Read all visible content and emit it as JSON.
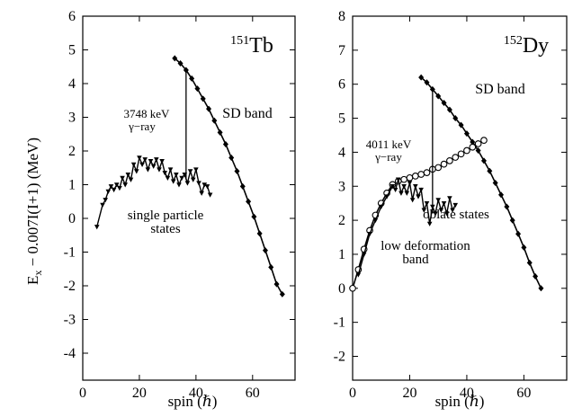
{
  "shared": {
    "ylabel": "E",
    "ylabel_sub": "x",
    "ylabel_rest": " − 0.007I(I+1) (MeV)"
  },
  "chart_data": [
    {
      "type": "line",
      "nucleus_mass": "151",
      "nucleus_symbol": "Tb",
      "xlabel": "spin (ℏ)",
      "xlim": [
        0,
        75
      ],
      "ylim": [
        -4.8,
        6
      ],
      "xticks": [
        0,
        20,
        40,
        60
      ],
      "yticks": [
        -4,
        -3,
        -2,
        -1,
        0,
        1,
        2,
        3,
        4,
        5,
        6
      ],
      "series": [
        {
          "name": "SD band",
          "marker": "diamond",
          "x": [
            32.5,
            34.5,
            36.5,
            38.5,
            40.5,
            42.5,
            44.5,
            46.5,
            48.5,
            50.5,
            52.5,
            54.5,
            56.5,
            58.5,
            60.5,
            62.5,
            64.5,
            66.5,
            68.5,
            70.5
          ],
          "y": [
            4.75,
            4.6,
            4.4,
            4.15,
            3.85,
            3.55,
            3.25,
            2.9,
            2.55,
            2.2,
            1.8,
            1.4,
            0.95,
            0.5,
            0.05,
            -0.45,
            -0.95,
            -1.45,
            -1.95,
            -2.25
          ]
        },
        {
          "name": "single particle states",
          "marker": "triangle",
          "x": [
            5,
            7,
            8,
            9,
            10,
            11,
            12,
            13,
            14,
            15,
            16,
            17,
            18,
            19,
            20,
            21,
            22,
            23,
            24,
            25,
            26,
            27,
            28,
            29,
            30,
            31,
            32,
            33,
            34,
            35,
            36,
            37,
            38,
            39,
            40,
            41,
            42,
            43,
            44,
            45
          ],
          "y": [
            -0.25,
            0.4,
            0.55,
            0.8,
            0.95,
            0.85,
            1.0,
            0.9,
            1.2,
            1.0,
            1.3,
            1.15,
            1.6,
            1.4,
            1.8,
            1.6,
            1.75,
            1.45,
            1.7,
            1.55,
            1.75,
            1.45,
            1.7,
            1.35,
            1.2,
            1.45,
            1.1,
            1.3,
            1.0,
            1.2,
            1.3,
            1.05,
            1.4,
            1.15,
            1.45,
            1.05,
            0.75,
            1.0,
            0.95,
            0.7
          ]
        }
      ],
      "transition": {
        "x": 36.5,
        "y_from": 4.35,
        "y_to": 1.15,
        "label_line1": "3748 keV",
        "label_line2": "γ−ray"
      },
      "annotations": {
        "sd": "SD band",
        "sp_line1": "single particle",
        "sp_line2": "states"
      }
    },
    {
      "type": "line",
      "nucleus_mass": "152",
      "nucleus_symbol": "Dy",
      "xlabel": "spin (ℏ)",
      "xlim": [
        0,
        75
      ],
      "ylim": [
        -2.7,
        8
      ],
      "xticks": [
        0,
        20,
        40,
        60
      ],
      "yticks": [
        -2,
        -1,
        0,
        1,
        2,
        3,
        4,
        5,
        6,
        7,
        8
      ],
      "series": [
        {
          "name": "SD band",
          "marker": "diamond",
          "x": [
            24,
            26,
            28,
            30,
            32,
            34,
            36,
            38,
            40,
            42,
            44,
            46,
            48,
            50,
            52,
            54,
            56,
            58,
            60,
            62,
            64,
            66
          ],
          "y": [
            6.2,
            6.05,
            5.85,
            5.65,
            5.45,
            5.25,
            5.0,
            4.8,
            4.55,
            4.3,
            4.05,
            3.75,
            3.45,
            3.1,
            2.75,
            2.4,
            2.0,
            1.6,
            1.2,
            0.75,
            0.35,
            0.0
          ]
        },
        {
          "name": "low deformation band",
          "marker": "circle",
          "x": [
            0,
            2,
            4,
            6,
            8,
            10,
            12,
            14,
            16,
            18,
            20,
            22,
            24,
            26,
            28,
            30,
            32,
            34,
            36,
            38,
            40,
            42,
            44,
            46
          ],
          "y": [
            0.0,
            0.55,
            1.15,
            1.7,
            2.15,
            2.5,
            2.8,
            3.05,
            3.15,
            3.2,
            3.25,
            3.3,
            3.35,
            3.4,
            3.5,
            3.55,
            3.65,
            3.75,
            3.85,
            3.95,
            4.05,
            4.15,
            4.25,
            4.35
          ]
        },
        {
          "name": "oblate states",
          "marker": "triangle",
          "x": [
            2,
            4,
            6,
            8,
            10,
            12,
            14,
            15,
            16,
            17,
            18,
            19,
            20,
            21,
            22,
            23,
            24,
            25,
            26,
            27,
            28,
            29,
            30,
            31,
            32,
            33,
            34,
            35,
            36
          ],
          "y": [
            0.4,
            1.0,
            1.6,
            2.0,
            2.4,
            2.7,
            3.0,
            2.9,
            3.2,
            2.8,
            3.0,
            2.8,
            3.1,
            2.6,
            3.0,
            2.7,
            2.9,
            2.3,
            2.5,
            1.9,
            2.4,
            2.2,
            2.6,
            2.3,
            2.5,
            2.2,
            2.65,
            2.3,
            2.45
          ]
        }
      ],
      "transition": {
        "x": 28,
        "y_from": 5.85,
        "y_to": 2.2,
        "label_line1": "4011 keV",
        "label_line2": "γ−ray"
      },
      "annotations": {
        "sd": "SD band",
        "oblate": "oblate states",
        "ld_line1": "low deformation",
        "ld_line2": "band"
      }
    }
  ]
}
